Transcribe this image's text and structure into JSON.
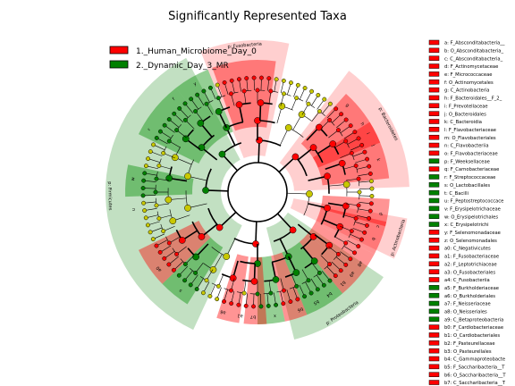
{
  "chart_data": {
    "type": "cladogram",
    "title": "Significantly Represented Taxa",
    "legend_placement": "top-left",
    "groups": [
      {
        "name": "1._Human_Microbiome_Day_0",
        "color": "#ff0000"
      },
      {
        "name": "2._Dynamic_Day_3_MR",
        "color": "#008000"
      }
    ],
    "phyla": [
      {
        "label": "p: Bacteroidetes",
        "group": 0,
        "start": 37,
        "end": 88
      },
      {
        "label": "p: Actinobacteria",
        "group": 0,
        "start": 100,
        "end": 116
      },
      {
        "label": "p: Firmicutes",
        "group": 1,
        "start": 205,
        "end": 332
      },
      {
        "label": "p: Fusobacteria",
        "group": 0,
        "start": 338,
        "end": 372
      },
      {
        "label": "p: Proteobacteria",
        "group": 1,
        "start": 124,
        "end": 166
      }
    ],
    "clades": [
      {
        "start": 42,
        "end": 68,
        "group": 0
      },
      {
        "start": 58,
        "end": 84,
        "group": 0
      },
      {
        "start": 93,
        "end": 105,
        "group": 0
      },
      {
        "start": 103,
        "end": 118,
        "group": 0
      },
      {
        "start": 118,
        "end": 130,
        "group": 0
      },
      {
        "start": 130,
        "end": 140,
        "group": 0
      },
      {
        "start": 140,
        "end": 158,
        "group": 1
      },
      {
        "start": 158,
        "end": 168,
        "group": 0
      },
      {
        "start": 168,
        "end": 180,
        "group": 1
      },
      {
        "start": 176,
        "end": 186,
        "group": 0
      },
      {
        "start": 188,
        "end": 198,
        "group": 0
      },
      {
        "start": 212,
        "end": 226,
        "group": 1
      },
      {
        "start": 226,
        "end": 244,
        "group": 0
      },
      {
        "start": 268,
        "end": 282,
        "group": 1
      },
      {
        "start": 296,
        "end": 322,
        "group": 1
      },
      {
        "start": 322,
        "end": 338,
        "group": 1
      },
      {
        "start": 340,
        "end": 368,
        "group": 0
      }
    ],
    "arc_labels": [
      {
        "angle": 75,
        "text": "k"
      },
      {
        "angle": 68,
        "text": "j"
      },
      {
        "angle": 62,
        "text": "i"
      },
      {
        "angle": 57,
        "text": "h"
      },
      {
        "angle": 46,
        "text": "g"
      },
      {
        "angle": 100,
        "text": "d"
      },
      {
        "angle": 106,
        "text": "c"
      },
      {
        "angle": 112,
        "text": "b"
      },
      {
        "angle": 125,
        "text": "a8"
      },
      {
        "angle": 131,
        "text": "a9"
      },
      {
        "angle": 137,
        "text": "b1"
      },
      {
        "angle": 145,
        "text": "b4"
      },
      {
        "angle": 152,
        "text": "b5"
      },
      {
        "angle": 160,
        "text": "b6"
      },
      {
        "angle": 172,
        "text": "x"
      },
      {
        "angle": 182,
        "text": "b7"
      },
      {
        "angle": 188,
        "text": "a1"
      },
      {
        "angle": 196,
        "text": "a6"
      },
      {
        "angle": 218,
        "text": "s"
      },
      {
        "angle": 232,
        "text": "a0"
      },
      {
        "angle": 262,
        "text": "u"
      },
      {
        "angle": 276,
        "text": "w"
      },
      {
        "angle": 300,
        "text": "r"
      },
      {
        "angle": 318,
        "text": "f"
      },
      {
        "angle": 330,
        "text": "y"
      }
    ],
    "key_entries": [
      {
        "code": "a",
        "label": "F_Absconditabacteria__",
        "group": 0
      },
      {
        "code": "b",
        "label": "O_Absconditabacteria_",
        "group": 0
      },
      {
        "code": "c",
        "label": "C_Absconditabacteria_",
        "group": 0
      },
      {
        "code": "d",
        "label": "F_Actinomycetaceae",
        "group": 0
      },
      {
        "code": "e",
        "label": "F_Micrococcaceae",
        "group": 0
      },
      {
        "code": "f",
        "label": "O_Actinomycetales",
        "group": 0
      },
      {
        "code": "g",
        "label": "C_Actinobacteria",
        "group": 0
      },
      {
        "code": "h",
        "label": "F_Bacteroidales__F_2_",
        "group": 0
      },
      {
        "code": "i",
        "label": "F_Prevotellaceae",
        "group": 0
      },
      {
        "code": "j",
        "label": "O_Bacteroidales",
        "group": 0
      },
      {
        "code": "k",
        "label": "C_Bacteroidia",
        "group": 0
      },
      {
        "code": "l",
        "label": "F_Flavobacteriaceae",
        "group": 0
      },
      {
        "code": "m",
        "label": "O_Flavobacteriales",
        "group": 0
      },
      {
        "code": "n",
        "label": "C_Flavobacteriia",
        "group": 0
      },
      {
        "code": "o",
        "label": "F_Flavobacteriaceae",
        "group": 0
      },
      {
        "code": "p",
        "label": "F_Weeksellaceae",
        "group": 1
      },
      {
        "code": "q",
        "label": "F_Carnobacteriaceae",
        "group": 0
      },
      {
        "code": "r",
        "label": "F_Streptococcaceae",
        "group": 1
      },
      {
        "code": "s",
        "label": "O_Lactobacillales",
        "group": 1
      },
      {
        "code": "t",
        "label": "C_Bacilli",
        "group": 1
      },
      {
        "code": "u",
        "label": "F_Peptostreptococcace",
        "group": 1
      },
      {
        "code": "v",
        "label": "F_Erysipelotrichaceae",
        "group": 1
      },
      {
        "code": "w",
        "label": "O_Erysipelotrichales",
        "group": 1
      },
      {
        "code": "x",
        "label": "C_Erysipelotrichi",
        "group": 1
      },
      {
        "code": "y",
        "label": "F_Selenomonadaceae",
        "group": 0
      },
      {
        "code": "z",
        "label": "O_Selenomonadales",
        "group": 0
      },
      {
        "code": "a0",
        "label": "C_Negativicutes",
        "group": 0
      },
      {
        "code": "a1",
        "label": "F_Fusobacteriaceae",
        "group": 0
      },
      {
        "code": "a2",
        "label": "F_Leptotrichiaceae",
        "group": 0
      },
      {
        "code": "a3",
        "label": "O_Fusobacteriales",
        "group": 0
      },
      {
        "code": "a4",
        "label": "C_Fusobacteriia",
        "group": 0
      },
      {
        "code": "a5",
        "label": "F_Burkholderiaceae",
        "group": 1
      },
      {
        "code": "a6",
        "label": "O_Burkholderiales",
        "group": 1
      },
      {
        "code": "a7",
        "label": "F_Neisseriaceae",
        "group": 1
      },
      {
        "code": "a8",
        "label": "O_Neisseriales",
        "group": 1
      },
      {
        "code": "a9",
        "label": "C_Betaproteobacteria",
        "group": 1
      },
      {
        "code": "b0",
        "label": "F_Cardiobacteriaceae",
        "group": 0
      },
      {
        "code": "b1",
        "label": "O_Cardiobacteriales",
        "group": 0
      },
      {
        "code": "b2",
        "label": "F_Pasteurellaceae",
        "group": 0
      },
      {
        "code": "b3",
        "label": "O_Pasteurellales",
        "group": 0
      },
      {
        "code": "b4",
        "label": "C_Gammaproteobacte",
        "group": 0
      },
      {
        "code": "b5",
        "label": "F_Saccharibacteria__T",
        "group": 0
      },
      {
        "code": "b6",
        "label": "O_Saccharibacteria__T",
        "group": 0
      },
      {
        "code": "b7",
        "label": "C_Saccharibacteria__T",
        "group": 0
      }
    ]
  }
}
